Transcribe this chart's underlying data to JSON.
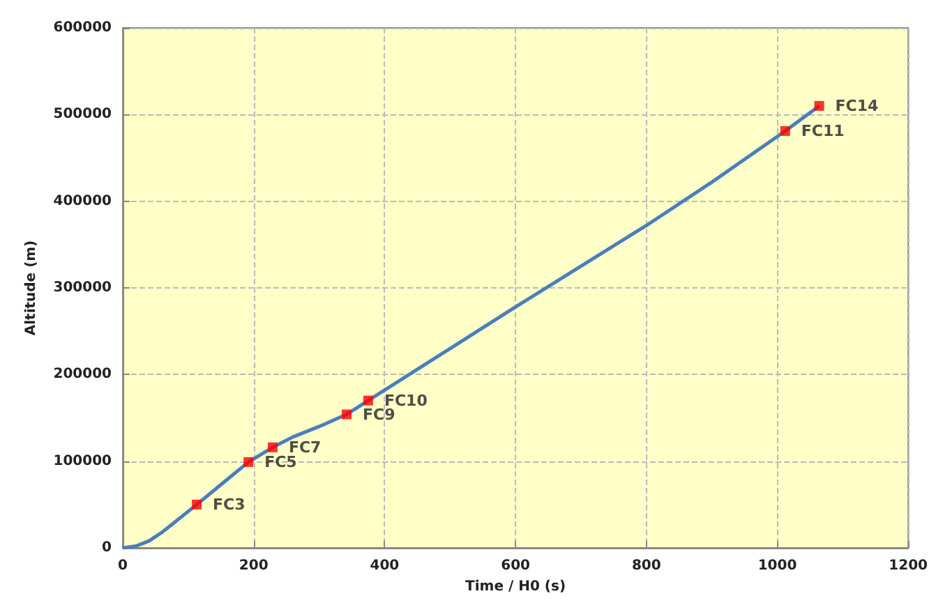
{
  "chart_data": {
    "type": "line",
    "xlabel": "Time / H0 (s)",
    "ylabel": "Altitude (m)",
    "x": [
      0,
      20,
      40,
      60,
      80,
      113,
      150,
      192,
      229,
      260,
      300,
      342,
      375,
      500,
      600,
      700,
      800,
      900,
      1012,
      1064
    ],
    "series": [
      {
        "color": "#4a7ebb",
        "values": [
          0,
          2000,
          8000,
          18000,
          30000,
          50000,
          73000,
          99000,
          116000,
          128000,
          140000,
          154000,
          170000,
          230000,
          278000,
          325000,
          372000,
          422000,
          481000,
          510000
        ]
      }
    ],
    "xlim": [
      0,
      1200
    ],
    "xticks": [
      0,
      200,
      400,
      600,
      800,
      1000,
      1200
    ],
    "ylim": [
      0,
      600000
    ],
    "yticks": [
      0,
      100000,
      200000,
      300000,
      400000,
      500000,
      600000
    ],
    "grid": true,
    "marker": "none",
    "line_style": "solid",
    "annotations": [
      {
        "text": "FC3",
        "x": 113,
        "y": 50000
      },
      {
        "text": "FC5",
        "x": 192,
        "y": 99000
      },
      {
        "text": "FC7",
        "x": 229,
        "y": 116000
      },
      {
        "text": "FC9",
        "x": 342,
        "y": 154000
      },
      {
        "text": "FC10",
        "x": 375,
        "y": 170000
      },
      {
        "text": "FC11",
        "x": 1012,
        "y": 481000
      },
      {
        "text": "FC14",
        "x": 1064,
        "y": 510000
      }
    ]
  }
}
